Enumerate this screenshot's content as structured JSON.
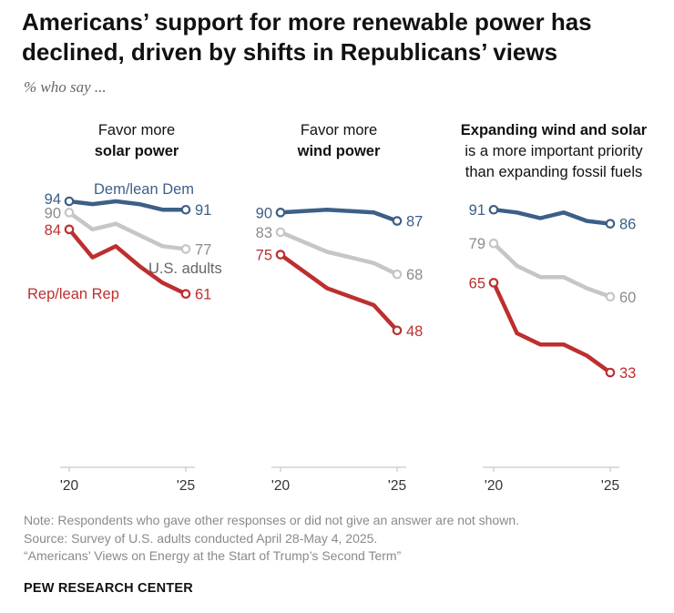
{
  "header": {
    "title": "Americans’ support for more renewable power has declined, driven by shifts in Republicans’ views",
    "subtitle": "% who say ..."
  },
  "panels": [
    {
      "line1": "Favor more",
      "line2_bold": "solar power"
    },
    {
      "line1": "Favor more",
      "line2_bold": "wind power"
    },
    {
      "line1_bold": "Expanding wind and solar",
      "line2": "is a more important priority",
      "line3": "than expanding fossil fuels"
    }
  ],
  "footer": {
    "note": "Note: Respondents who gave other responses or did not give an answer are not shown.",
    "source": "Source: Survey of U.S. adults conducted April 28-May 4, 2025.",
    "report": "“Americans’ Views on Energy at the Start of Trump’s Second Term”",
    "brand": "PEW RESEARCH CENTER"
  },
  "colors": {
    "dem": "#3d5f86",
    "total": "#c6c6c6",
    "rep": "#bd2f2f",
    "axis": "#bdbdbd"
  },
  "chart_data": [
    {
      "type": "line",
      "title": "Favor more solar power",
      "x": [
        2020,
        2021,
        2022,
        2023,
        2024,
        2025
      ],
      "xtick_labels": [
        "'20",
        "'25"
      ],
      "ylim": [
        20,
        100
      ],
      "series": [
        {
          "name": "Dem/lean Dem",
          "key": "dem",
          "values": [
            94,
            93,
            94,
            93,
            91,
            91
          ]
        },
        {
          "name": "U.S. adults",
          "key": "total",
          "values": [
            90,
            84,
            86,
            82,
            78,
            77
          ]
        },
        {
          "name": "Rep/lean Rep",
          "key": "rep",
          "values": [
            84,
            74,
            78,
            71,
            65,
            61
          ]
        }
      ]
    },
    {
      "type": "line",
      "title": "Favor more wind power",
      "x": [
        2020,
        2022,
        2024,
        2025
      ],
      "xtick_labels": [
        "'20",
        "'25"
      ],
      "ylim": [
        20,
        100
      ],
      "series": [
        {
          "key": "dem",
          "values": [
            90,
            91,
            90,
            87
          ]
        },
        {
          "key": "total",
          "values": [
            83,
            76,
            72,
            68
          ]
        },
        {
          "key": "rep",
          "values": [
            75,
            63,
            57,
            48
          ]
        }
      ]
    },
    {
      "type": "line",
      "title": "Expanding wind and solar is a more important priority than expanding fossil fuels",
      "x": [
        2020,
        2021,
        2022,
        2023,
        2024,
        2025
      ],
      "xtick_labels": [
        "'20",
        "'25"
      ],
      "ylim": [
        20,
        100
      ],
      "series": [
        {
          "key": "dem",
          "values": [
            91,
            90,
            88,
            90,
            87,
            86
          ]
        },
        {
          "key": "total",
          "values": [
            79,
            71,
            67,
            67,
            63,
            60
          ]
        },
        {
          "key": "rep",
          "values": [
            65,
            47,
            43,
            43,
            39,
            33
          ]
        }
      ]
    }
  ]
}
